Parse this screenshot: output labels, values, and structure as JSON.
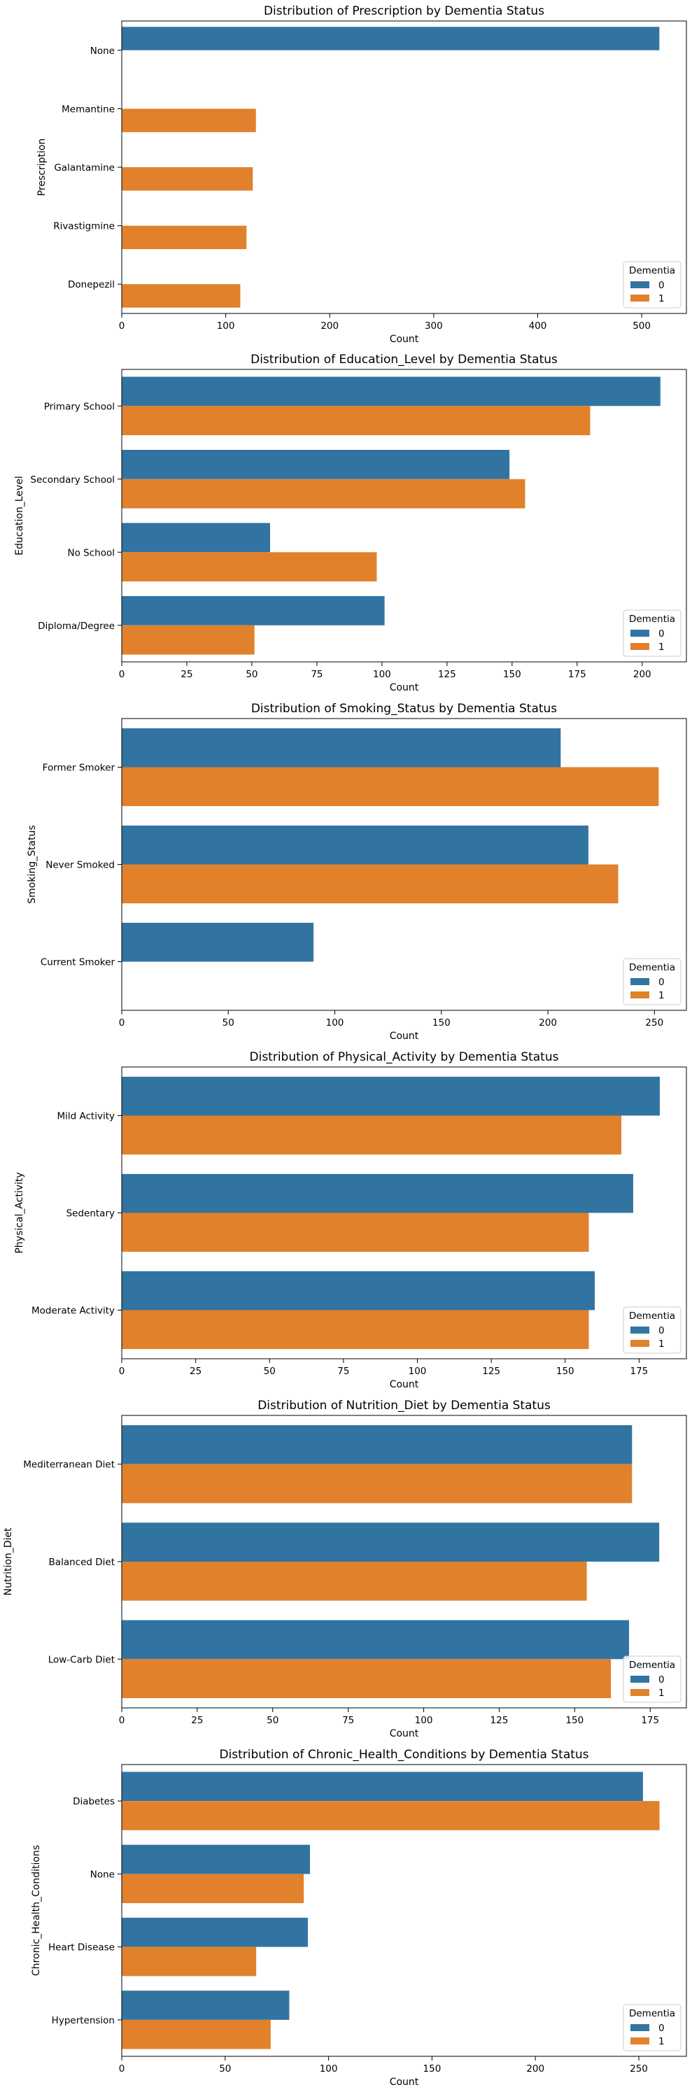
{
  "colors": {
    "series0": "#3274a1",
    "series1": "#e1812c"
  },
  "chart_data": [
    {
      "type": "bar",
      "orientation": "horizontal",
      "title": "Distribution of Prescription by Dementia Status",
      "xlabel": "Count",
      "ylabel": "Prescription",
      "categories": [
        "None",
        "Memantine",
        "Galantamine",
        "Rivastigmine",
        "Donepezil"
      ],
      "series": [
        {
          "name": "0",
          "values": [
            517,
            0,
            0,
            0,
            0
          ]
        },
        {
          "name": "1",
          "values": [
            0,
            129,
            126,
            120,
            114
          ]
        }
      ],
      "xlim": [
        0,
        543
      ],
      "xticks": [
        0,
        100,
        200,
        300,
        400,
        500
      ],
      "legend": {
        "title": "Dementia",
        "position": "lower-right"
      }
    },
    {
      "type": "bar",
      "orientation": "horizontal",
      "title": "Distribution of Education_Level by Dementia Status",
      "xlabel": "Count",
      "ylabel": "Education_Level",
      "categories": [
        "Primary School",
        "Secondary School",
        "No School",
        "Diploma/Degree"
      ],
      "series": [
        {
          "name": "0",
          "values": [
            207,
            149,
            57,
            101
          ]
        },
        {
          "name": "1",
          "values": [
            180,
            155,
            98,
            51
          ]
        }
      ],
      "xlim": [
        0,
        217
      ],
      "xticks": [
        0,
        25,
        50,
        75,
        100,
        125,
        150,
        175,
        200
      ],
      "legend": {
        "title": "Dementia",
        "position": "lower-right"
      }
    },
    {
      "type": "bar",
      "orientation": "horizontal",
      "title": "Distribution of Smoking_Status by Dementia Status",
      "xlabel": "Count",
      "ylabel": "Smoking_Status",
      "categories": [
        "Former Smoker",
        "Never Smoked",
        "Current Smoker"
      ],
      "series": [
        {
          "name": "0",
          "values": [
            206,
            219,
            90
          ]
        },
        {
          "name": "1",
          "values": [
            252,
            233,
            0
          ]
        }
      ],
      "xlim": [
        0,
        265
      ],
      "xticks": [
        0,
        50,
        100,
        150,
        200,
        250
      ],
      "legend": {
        "title": "Dementia",
        "position": "lower-right"
      }
    },
    {
      "type": "bar",
      "orientation": "horizontal",
      "title": "Distribution of Physical_Activity by Dementia Status",
      "xlabel": "Count",
      "ylabel": "Physical_Activity",
      "categories": [
        "Mild Activity",
        "Sedentary",
        "Moderate Activity"
      ],
      "series": [
        {
          "name": "0",
          "values": [
            182,
            173,
            160
          ]
        },
        {
          "name": "1",
          "values": [
            169,
            158,
            158
          ]
        }
      ],
      "xlim": [
        0,
        191
      ],
      "xticks": [
        0,
        25,
        50,
        75,
        100,
        125,
        150,
        175
      ],
      "legend": {
        "title": "Dementia",
        "position": "lower-right"
      }
    },
    {
      "type": "bar",
      "orientation": "horizontal",
      "title": "Distribution of Nutrition_Diet by Dementia Status",
      "xlabel": "Count",
      "ylabel": "Nutrition_Diet",
      "categories": [
        "Mediterranean Diet",
        "Balanced Diet",
        "Low-Carb Diet"
      ],
      "series": [
        {
          "name": "0",
          "values": [
            169,
            178,
            168
          ]
        },
        {
          "name": "1",
          "values": [
            169,
            154,
            162
          ]
        }
      ],
      "xlim": [
        0,
        187
      ],
      "xticks": [
        0,
        25,
        50,
        75,
        100,
        125,
        150,
        175
      ],
      "legend": {
        "title": "Dementia",
        "position": "lower-right"
      }
    },
    {
      "type": "bar",
      "orientation": "horizontal",
      "title": "Distribution of Chronic_Health_Conditions by Dementia Status",
      "xlabel": "Count",
      "ylabel": "Chronic_Health_Conditions",
      "categories": [
        "Diabetes",
        "None",
        "Heart Disease",
        "Hypertension"
      ],
      "series": [
        {
          "name": "0",
          "values": [
            252,
            91,
            90,
            81
          ]
        },
        {
          "name": "1",
          "values": [
            260,
            88,
            65,
            72
          ]
        }
      ],
      "xlim": [
        0,
        273
      ],
      "xticks": [
        0,
        50,
        100,
        150,
        200,
        250
      ],
      "legend": {
        "title": "Dementia",
        "position": "lower-right"
      }
    }
  ]
}
